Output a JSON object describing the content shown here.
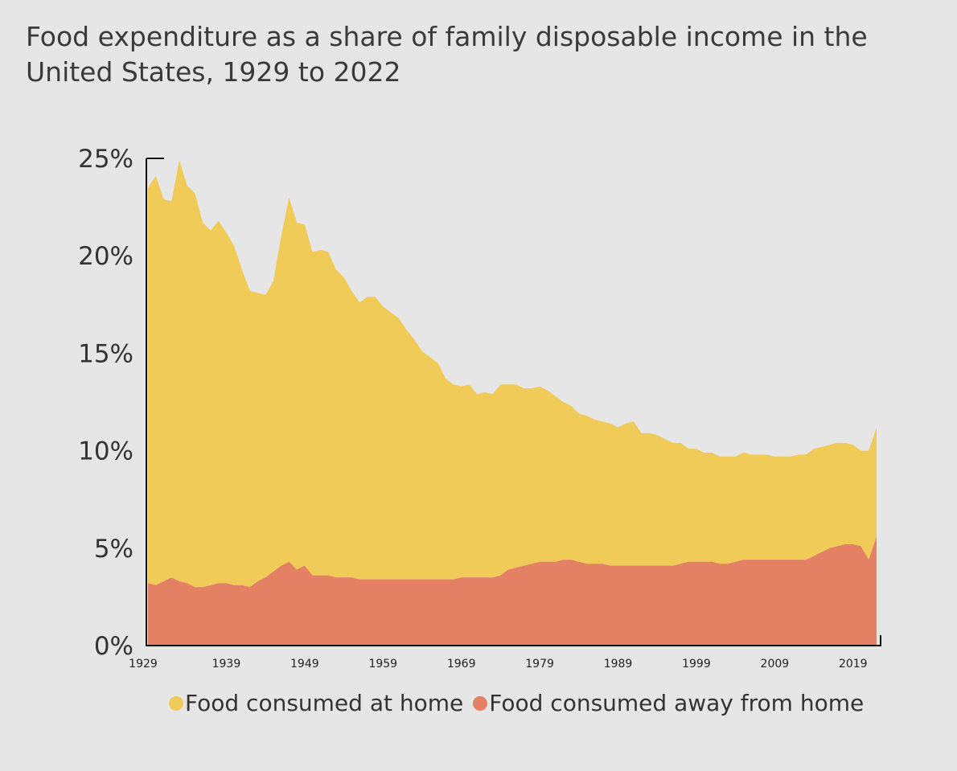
{
  "title": "Food expenditure as a share of family disposable income in the United States, 1929 to 2022",
  "colors": {
    "at_home": "#f0cb58",
    "away_from_home": "#e48064",
    "background": "#e6e6e6"
  },
  "chart_data": {
    "type": "area",
    "stacked": true,
    "title": "Food expenditure as a share of family disposable income in the United States, 1929 to 2022",
    "xlabel": "",
    "ylabel": "",
    "xlim": [
      1929,
      2022
    ],
    "ylim": [
      0,
      25
    ],
    "y_ticks": [
      "0%",
      "5%",
      "10%",
      "15%",
      "20%",
      "25%"
    ],
    "x_ticks": [
      "1929",
      "1939",
      "1949",
      "1959",
      "1969",
      "1979",
      "1989",
      "1999",
      "2009",
      "2019"
    ],
    "x_tick_values": [
      1929,
      1939,
      1949,
      1959,
      1969,
      1979,
      1989,
      1999,
      2009,
      2019
    ],
    "legend_position": "bottom",
    "grid": false,
    "x": [
      1929,
      1930,
      1931,
      1932,
      1933,
      1934,
      1935,
      1936,
      1937,
      1938,
      1939,
      1940,
      1941,
      1942,
      1943,
      1944,
      1945,
      1946,
      1947,
      1948,
      1949,
      1950,
      1951,
      1952,
      1953,
      1954,
      1955,
      1956,
      1957,
      1958,
      1959,
      1960,
      1961,
      1962,
      1963,
      1964,
      1965,
      1966,
      1967,
      1968,
      1969,
      1970,
      1971,
      1972,
      1973,
      1974,
      1975,
      1976,
      1977,
      1978,
      1979,
      1980,
      1981,
      1982,
      1983,
      1984,
      1985,
      1986,
      1987,
      1988,
      1989,
      1990,
      1991,
      1992,
      1993,
      1994,
      1995,
      1996,
      1997,
      1998,
      1999,
      2000,
      2001,
      2002,
      2003,
      2004,
      2005,
      2006,
      2007,
      2008,
      2009,
      2010,
      2011,
      2012,
      2013,
      2014,
      2015,
      2016,
      2017,
      2018,
      2019,
      2020,
      2021,
      2022
    ],
    "series": [
      {
        "name": "Food consumed away from home",
        "values": [
          3.2,
          3.1,
          3.3,
          3.5,
          3.3,
          3.2,
          3.0,
          3.0,
          3.1,
          3.2,
          3.2,
          3.1,
          3.1,
          3.0,
          3.3,
          3.5,
          3.8,
          4.1,
          4.3,
          3.9,
          4.1,
          3.6,
          3.6,
          3.6,
          3.5,
          3.5,
          3.5,
          3.4,
          3.4,
          3.4,
          3.4,
          3.4,
          3.4,
          3.4,
          3.4,
          3.4,
          3.4,
          3.4,
          3.4,
          3.4,
          3.5,
          3.5,
          3.5,
          3.5,
          3.5,
          3.6,
          3.9,
          4.0,
          4.1,
          4.2,
          4.3,
          4.3,
          4.3,
          4.4,
          4.4,
          4.3,
          4.2,
          4.2,
          4.2,
          4.1,
          4.1,
          4.1,
          4.1,
          4.1,
          4.1,
          4.1,
          4.1,
          4.1,
          4.2,
          4.3,
          4.3,
          4.3,
          4.3,
          4.2,
          4.2,
          4.3,
          4.4,
          4.4,
          4.4,
          4.4,
          4.4,
          4.4,
          4.4,
          4.4,
          4.4,
          4.6,
          4.8,
          5.0,
          5.1,
          5.2,
          5.2,
          5.1,
          4.4,
          5.6
        ]
      },
      {
        "name": "Food consumed at home",
        "values": [
          20.3,
          21.0,
          19.6,
          19.3,
          21.6,
          20.4,
          20.2,
          18.7,
          18.2,
          18.6,
          18.0,
          17.4,
          16.2,
          15.2,
          14.8,
          14.5,
          14.9,
          16.9,
          18.7,
          17.8,
          17.5,
          16.6,
          16.7,
          16.6,
          15.8,
          15.4,
          14.7,
          14.2,
          14.5,
          14.5,
          14.0,
          13.7,
          13.4,
          12.8,
          12.3,
          11.7,
          11.4,
          11.1,
          10.3,
          10.0,
          9.8,
          9.9,
          9.4,
          9.5,
          9.4,
          9.8,
          9.5,
          9.4,
          9.1,
          9.0,
          9.0,
          8.8,
          8.5,
          8.1,
          7.9,
          7.6,
          7.6,
          7.4,
          7.3,
          7.3,
          7.1,
          7.3,
          7.4,
          6.8,
          6.8,
          6.7,
          6.5,
          6.3,
          6.2,
          5.8,
          5.8,
          5.6,
          5.6,
          5.5,
          5.5,
          5.4,
          5.5,
          5.4,
          5.4,
          5.4,
          5.3,
          5.3,
          5.3,
          5.4,
          5.4,
          5.5,
          5.4,
          5.3,
          5.3,
          5.2,
          5.1,
          4.9,
          5.6,
          5.6
        ]
      }
    ]
  },
  "legend": [
    {
      "label": "Food consumed at home",
      "color": "#f0cb58"
    },
    {
      "label": "Food consumed away from home",
      "color": "#e48064"
    }
  ]
}
